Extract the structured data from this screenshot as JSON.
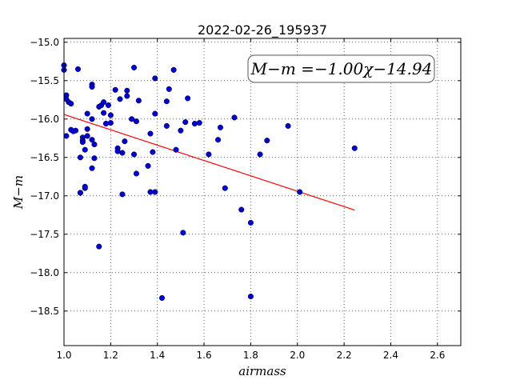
{
  "chart_data": {
    "type": "scatter",
    "title": "2022-02-26_195937",
    "xlabel": "airmass",
    "ylabel": "M−m",
    "xlim": [
      1.0,
      2.7
    ],
    "ylim": [
      -14.95,
      -18.95
    ],
    "y_axis_inverted": true,
    "grid": true,
    "x_ticks": [
      "1.0",
      "1.2",
      "1.4",
      "1.6",
      "1.8",
      "2.0",
      "2.2",
      "2.4",
      "2.6"
    ],
    "y_ticks": [
      "−15.0",
      "−15.5",
      "−16.0",
      "−16.5",
      "−17.0",
      "−17.5",
      "−18.0",
      "−18.5"
    ],
    "annotation": "M−m =−1.00χ−14.94",
    "fit": {
      "slope": -1.0,
      "intercept": -14.94,
      "x_range": [
        1.0,
        2.245
      ],
      "color": "#ff0000"
    },
    "point_color": "#0000cc",
    "x": [
      1.0,
      1.0,
      1.01,
      1.01,
      1.02,
      1.03,
      1.04,
      1.01,
      1.03,
      1.05,
      1.06,
      1.07,
      1.08,
      1.08,
      1.09,
      1.1,
      1.1,
      1.1,
      1.07,
      1.09,
      1.12,
      1.12,
      1.12,
      1.12,
      1.13,
      1.13,
      1.12,
      1.15,
      1.16,
      1.17,
      1.17,
      1.18,
      1.18,
      1.19,
      1.2,
      1.2,
      1.22,
      1.23,
      1.24,
      1.25,
      1.25,
      1.26,
      1.27,
      1.27,
      1.29,
      1.3,
      1.31,
      1.3,
      1.31,
      1.32,
      1.36,
      1.37,
      1.38,
      1.39,
      1.39,
      1.39,
      1.44,
      1.44,
      1.45,
      1.47,
      1.48,
      1.5,
      1.52,
      1.53,
      1.56,
      1.58,
      1.62,
      1.66,
      1.67,
      1.73,
      1.69,
      1.76,
      1.8,
      1.8,
      1.84,
      1.87,
      1.96,
      2.01,
      2.245,
      1.08,
      1.07,
      1.09,
      1.23,
      1.15,
      1.37,
      1.42,
      1.51
    ],
    "y": [
      -15.3,
      -15.36,
      -15.69,
      -15.74,
      -15.78,
      -15.8,
      -16.16,
      -16.22,
      -16.14,
      -16.15,
      -15.35,
      -16.5,
      -16.24,
      -16.28,
      -16.4,
      -15.93,
      -16.13,
      -16.22,
      -16.96,
      -16.9,
      -15.55,
      -15.58,
      -16.0,
      -16.27,
      -16.33,
      -16.51,
      -16.64,
      -15.84,
      -15.82,
      -15.78,
      -15.92,
      -16.06,
      -16.06,
      -15.82,
      -15.95,
      -16.05,
      -15.62,
      -16.38,
      -15.74,
      -16.44,
      -16.98,
      -16.29,
      -15.63,
      -15.7,
      -16.0,
      -15.33,
      -16.03,
      -16.46,
      -16.71,
      -15.76,
      -16.61,
      -16.19,
      -16.43,
      -15.47,
      -15.93,
      -16.95,
      -16.09,
      -15.77,
      -15.61,
      -15.36,
      -16.4,
      -16.15,
      -16.04,
      -15.73,
      -16.06,
      -16.05,
      -16.46,
      -16.27,
      -16.11,
      -15.98,
      -16.9,
      -17.18,
      -17.35,
      -18.31,
      -16.46,
      -16.28,
      -16.09,
      -16.95,
      -16.38,
      -16.3,
      -16.96,
      -16.88,
      -16.42,
      -17.66,
      -16.95,
      -18.33,
      -17.48
    ]
  }
}
